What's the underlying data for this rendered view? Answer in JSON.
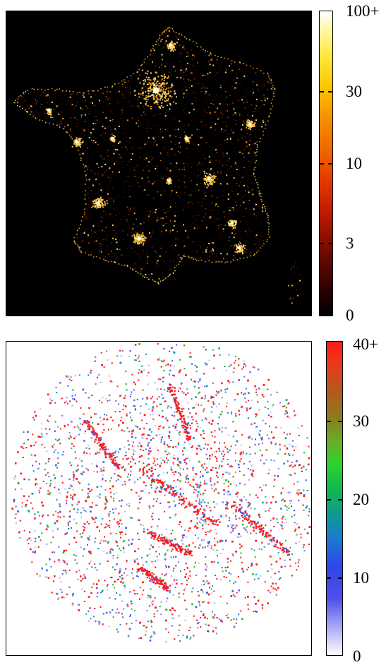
{
  "chart_data": [
    {
      "type": "heatmap",
      "subject": "point density map, top panel",
      "colorbar": {
        "scale": "log",
        "ticks": [
          "0",
          "3",
          "10",
          "30",
          "100+"
        ],
        "colormap": [
          "#000000",
          "#8b0000",
          "#ff2a00",
          "#ff9900",
          "#ffee33",
          "#ffffff"
        ]
      },
      "background": "#000000",
      "grid": false
    },
    {
      "type": "heatmap",
      "subject": "point density map, bottom panel",
      "colorbar": {
        "scale": "linear",
        "ticks": [
          "0",
          "10",
          "20",
          "30",
          "40+"
        ],
        "colormap": [
          "#ffffff",
          "#5555ee",
          "#1a8ad0",
          "#22cc33",
          "#a0601c",
          "#ff1a1a"
        ]
      },
      "background": "#ffffff",
      "grid": false
    }
  ]
}
